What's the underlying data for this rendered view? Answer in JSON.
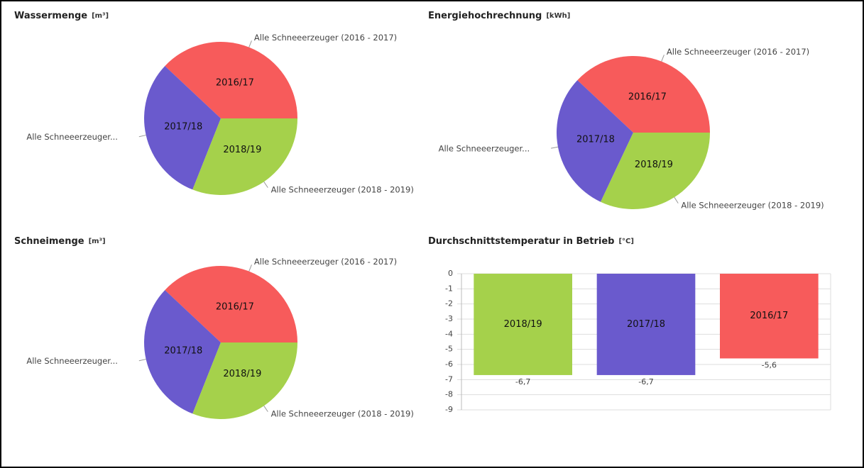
{
  "chart_data": [
    {
      "type": "pie",
      "title": "Wassermenge",
      "unit": "[m³]",
      "categories": [
        "2016/17",
        "2017/18",
        "2018/19"
      ],
      "values": [
        38,
        31,
        31
      ],
      "labels": [
        "Alle Schneeerzeuger (2016 - 2017)",
        "Alle Schneeerzeuger...",
        "Alle Schneeerzeuger (2018 - 2019)"
      ],
      "colors": [
        "#f75b5b",
        "#6a5acd",
        "#a5d14b"
      ]
    },
    {
      "type": "pie",
      "title": "Energiehochrechnung",
      "unit": "[kWh]",
      "categories": [
        "2016/17",
        "2017/18",
        "2018/19"
      ],
      "values": [
        38,
        30,
        32
      ],
      "labels": [
        "Alle Schneeerzeuger (2016 - 2017)",
        "Alle Schneeerzeuger...",
        "Alle Schneeerzeuger (2018 - 2019)"
      ],
      "colors": [
        "#f75b5b",
        "#6a5acd",
        "#a5d14b"
      ]
    },
    {
      "type": "pie",
      "title": "Schneimenge",
      "unit": "[m³]",
      "categories": [
        "2016/17",
        "2017/18",
        "2018/19"
      ],
      "values": [
        38,
        31,
        31
      ],
      "labels": [
        "Alle Schneeerzeuger (2016 - 2017)",
        "Alle Schneeerzeuger...",
        "Alle Schneeerzeuger (2018 - 2019)"
      ],
      "colors": [
        "#f75b5b",
        "#6a5acd",
        "#a5d14b"
      ]
    },
    {
      "type": "bar",
      "title": "Durchschnittstemperatur in Betrieb",
      "unit": "[°C]",
      "categories": [
        "2018/19",
        "2017/18",
        "2016/17"
      ],
      "values": [
        -6.7,
        -6.7,
        -5.6
      ],
      "value_labels": [
        "-6,7",
        "-6,7",
        "-5,6"
      ],
      "colors": [
        "#a5d14b",
        "#6a5acd",
        "#f75b5b"
      ],
      "ylim": [
        -9,
        0
      ],
      "yticks": [
        0,
        -1,
        -2,
        -3,
        -4,
        -5,
        -6,
        -7,
        -8,
        -9
      ],
      "grid": true
    }
  ]
}
